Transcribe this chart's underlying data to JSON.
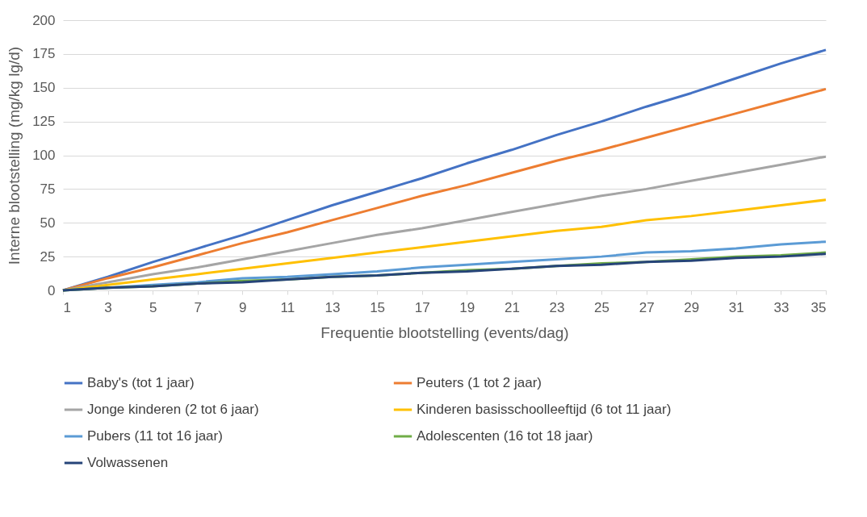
{
  "chart_data": {
    "type": "line",
    "xlabel": "Frequentie blootstelling (events/dag)",
    "ylabel": "Interne blootstelling (mg/kg lg/d)",
    "x": [
      1,
      3,
      5,
      7,
      9,
      11,
      13,
      15,
      17,
      19,
      21,
      23,
      25,
      27,
      29,
      31,
      33,
      35
    ],
    "xlim": [
      1,
      35
    ],
    "xticks": [
      1,
      3,
      5,
      7,
      9,
      11,
      13,
      15,
      17,
      19,
      21,
      23,
      25,
      27,
      29,
      31,
      33,
      35
    ],
    "ylim": [
      0,
      200
    ],
    "yticks": [
      0,
      25,
      50,
      75,
      100,
      125,
      150,
      175,
      200
    ],
    "grid": "y",
    "legend": "bottom",
    "marker": "none",
    "line_style": "solid",
    "series": [
      {
        "name": "Baby's (tot 1 jaar)",
        "color": "#4472c4",
        "values": [
          0,
          10,
          21,
          31,
          41,
          52,
          63,
          73,
          83,
          94,
          104,
          115,
          125,
          136,
          146,
          157,
          168,
          178
        ]
      },
      {
        "name": "Peuters (1 tot 2 jaar)",
        "color": "#ed7d31",
        "values": [
          0,
          9,
          17,
          26,
          35,
          43,
          52,
          61,
          70,
          78,
          87,
          96,
          104,
          113,
          122,
          131,
          140,
          149
        ]
      },
      {
        "name": "Jonge kinderen (2 tot 6 jaar)",
        "color": "#a5a5a5",
        "values": [
          0,
          6,
          12,
          17,
          23,
          29,
          35,
          41,
          46,
          52,
          58,
          64,
          70,
          75,
          81,
          87,
          93,
          99
        ]
      },
      {
        "name": "Kinderen basisschoolleeftijd (6 tot 11 jaar)",
        "color": "#ffc000",
        "values": [
          0,
          4,
          8,
          12,
          16,
          20,
          24,
          28,
          32,
          36,
          40,
          44,
          47,
          52,
          55,
          59,
          63,
          67
        ]
      },
      {
        "name": "Pubers (11 tot 16 jaar)",
        "color": "#5b9bd5",
        "values": [
          0,
          2,
          4,
          6,
          9,
          10,
          12,
          14,
          17,
          19,
          21,
          23,
          25,
          28,
          29,
          31,
          34,
          36
        ]
      },
      {
        "name": "Adolescenten (16 tot 18 jaar)",
        "color": "#70ad47",
        "values": [
          0,
          2,
          3,
          5,
          7,
          8,
          10,
          11,
          13,
          15,
          16,
          18,
          20,
          21,
          23,
          25,
          26,
          28
        ]
      },
      {
        "name": "Volwassenen",
        "color": "#264478",
        "values": [
          0,
          2,
          3,
          5,
          6,
          8,
          10,
          11,
          13,
          14,
          16,
          18,
          19,
          21,
          22,
          24,
          25,
          27
        ]
      }
    ]
  }
}
